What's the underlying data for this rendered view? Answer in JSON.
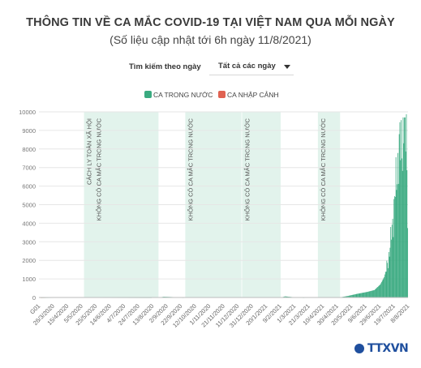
{
  "header": {
    "title": "THÔNG TIN VỀ CA MẮC COVID-19 TẠI VIỆT NAM QUA MỖI NGÀY",
    "subtitle": "(Số liệu cập nhật tới 6h ngày 11/8/2021)"
  },
  "filter": {
    "label": "Tìm kiếm theo ngày",
    "selected": "Tất cả các ngày"
  },
  "logo": {
    "text": "TTXVN"
  },
  "chart_data": {
    "type": "bar",
    "title": "",
    "xlabel": "",
    "ylabel": "",
    "ylim": [
      0,
      10000
    ],
    "y_ticks": [
      0,
      1000,
      2000,
      3000,
      4000,
      5000,
      6000,
      7000,
      8000,
      9000,
      10000
    ],
    "grid": true,
    "legend": "top-center",
    "x_tick_labels": [
      "G01",
      "26/3/2020",
      "15/4/2020",
      "5/5/2020",
      "25/5/2020",
      "14/6/2020",
      "4/7/2020",
      "24/7/2020",
      "13/8/2020",
      "2/9/2020",
      "22/9/2020",
      "12/10/2020",
      "1/11/2020",
      "21/11/2020",
      "11/12/2020",
      "31/12/2020",
      "20/1/2021",
      "9/2/2021",
      "1/3/2021",
      "21/3/2021",
      "10/4/2021",
      "30/4/2021",
      "20/5/2021",
      "9/6/2021",
      "29/6/2021",
      "19/7/2021",
      "8/8/2021"
    ],
    "date_range": [
      "2020-01-23",
      "2021-08-10"
    ],
    "series": [
      {
        "name": "CA TRONG NƯỚC",
        "color": "#3aaa80",
        "approx_points": [
          {
            "x": "2020-01-23",
            "y": 0
          },
          {
            "x": "2020-03-15",
            "y": 10
          },
          {
            "x": "2020-04-10",
            "y": 5
          },
          {
            "x": "2020-07-24",
            "y": 0
          },
          {
            "x": "2020-08-01",
            "y": 40
          },
          {
            "x": "2020-08-10",
            "y": 30
          },
          {
            "x": "2020-09-01",
            "y": 0
          },
          {
            "x": "2021-01-28",
            "y": 0
          },
          {
            "x": "2021-02-03",
            "y": 60
          },
          {
            "x": "2021-02-15",
            "y": 20
          },
          {
            "x": "2021-03-05",
            "y": 0
          },
          {
            "x": "2021-04-27",
            "y": 0
          },
          {
            "x": "2021-05-10",
            "y": 80
          },
          {
            "x": "2021-05-25",
            "y": 200
          },
          {
            "x": "2021-06-09",
            "y": 300
          },
          {
            "x": "2021-06-20",
            "y": 400
          },
          {
            "x": "2021-06-29",
            "y": 700
          },
          {
            "x": "2021-07-05",
            "y": 1100
          },
          {
            "x": "2021-07-10",
            "y": 1800
          },
          {
            "x": "2021-07-15",
            "y": 3000
          },
          {
            "x": "2021-07-19",
            "y": 4500
          },
          {
            "x": "2021-07-23",
            "y": 6000
          },
          {
            "x": "2021-07-27",
            "y": 7800
          },
          {
            "x": "2021-08-01",
            "y": 8400
          },
          {
            "x": "2021-08-05",
            "y": 9300
          },
          {
            "x": "2021-08-08",
            "y": 9700
          },
          {
            "x": "2021-08-10",
            "y": 4700
          }
        ]
      },
      {
        "name": "CA NHẬP CẢNH",
        "color": "#e06252",
        "approx_points": [
          {
            "x": "2020-01-23",
            "y": 0
          },
          {
            "x": "2020-03-20",
            "y": 20
          },
          {
            "x": "2021-08-10",
            "y": 10
          }
        ]
      }
    ],
    "shaded_periods": [
      {
        "start": "2020-04-01",
        "end": "2020-07-24",
        "labels": [
          "CÁCH LY TOÀN XÃ HỘI",
          "KHÔNG CÓ CA MẮC TRONG NƯỚC"
        ]
      },
      {
        "start": "2020-09-03",
        "end": "2020-11-28",
        "labels": [
          "KHÔNG CÓ CA MẮC TRONG NƯỚC"
        ]
      },
      {
        "start": "2020-11-29",
        "end": "2021-01-27",
        "labels": [
          "KHÔNG CÓ CA MẮC TRONG NƯỚC"
        ]
      },
      {
        "start": "2021-03-25",
        "end": "2021-04-28",
        "labels": [
          "KHÔNG CÓ CA MẮC TRONG NƯỚC"
        ]
      }
    ]
  }
}
